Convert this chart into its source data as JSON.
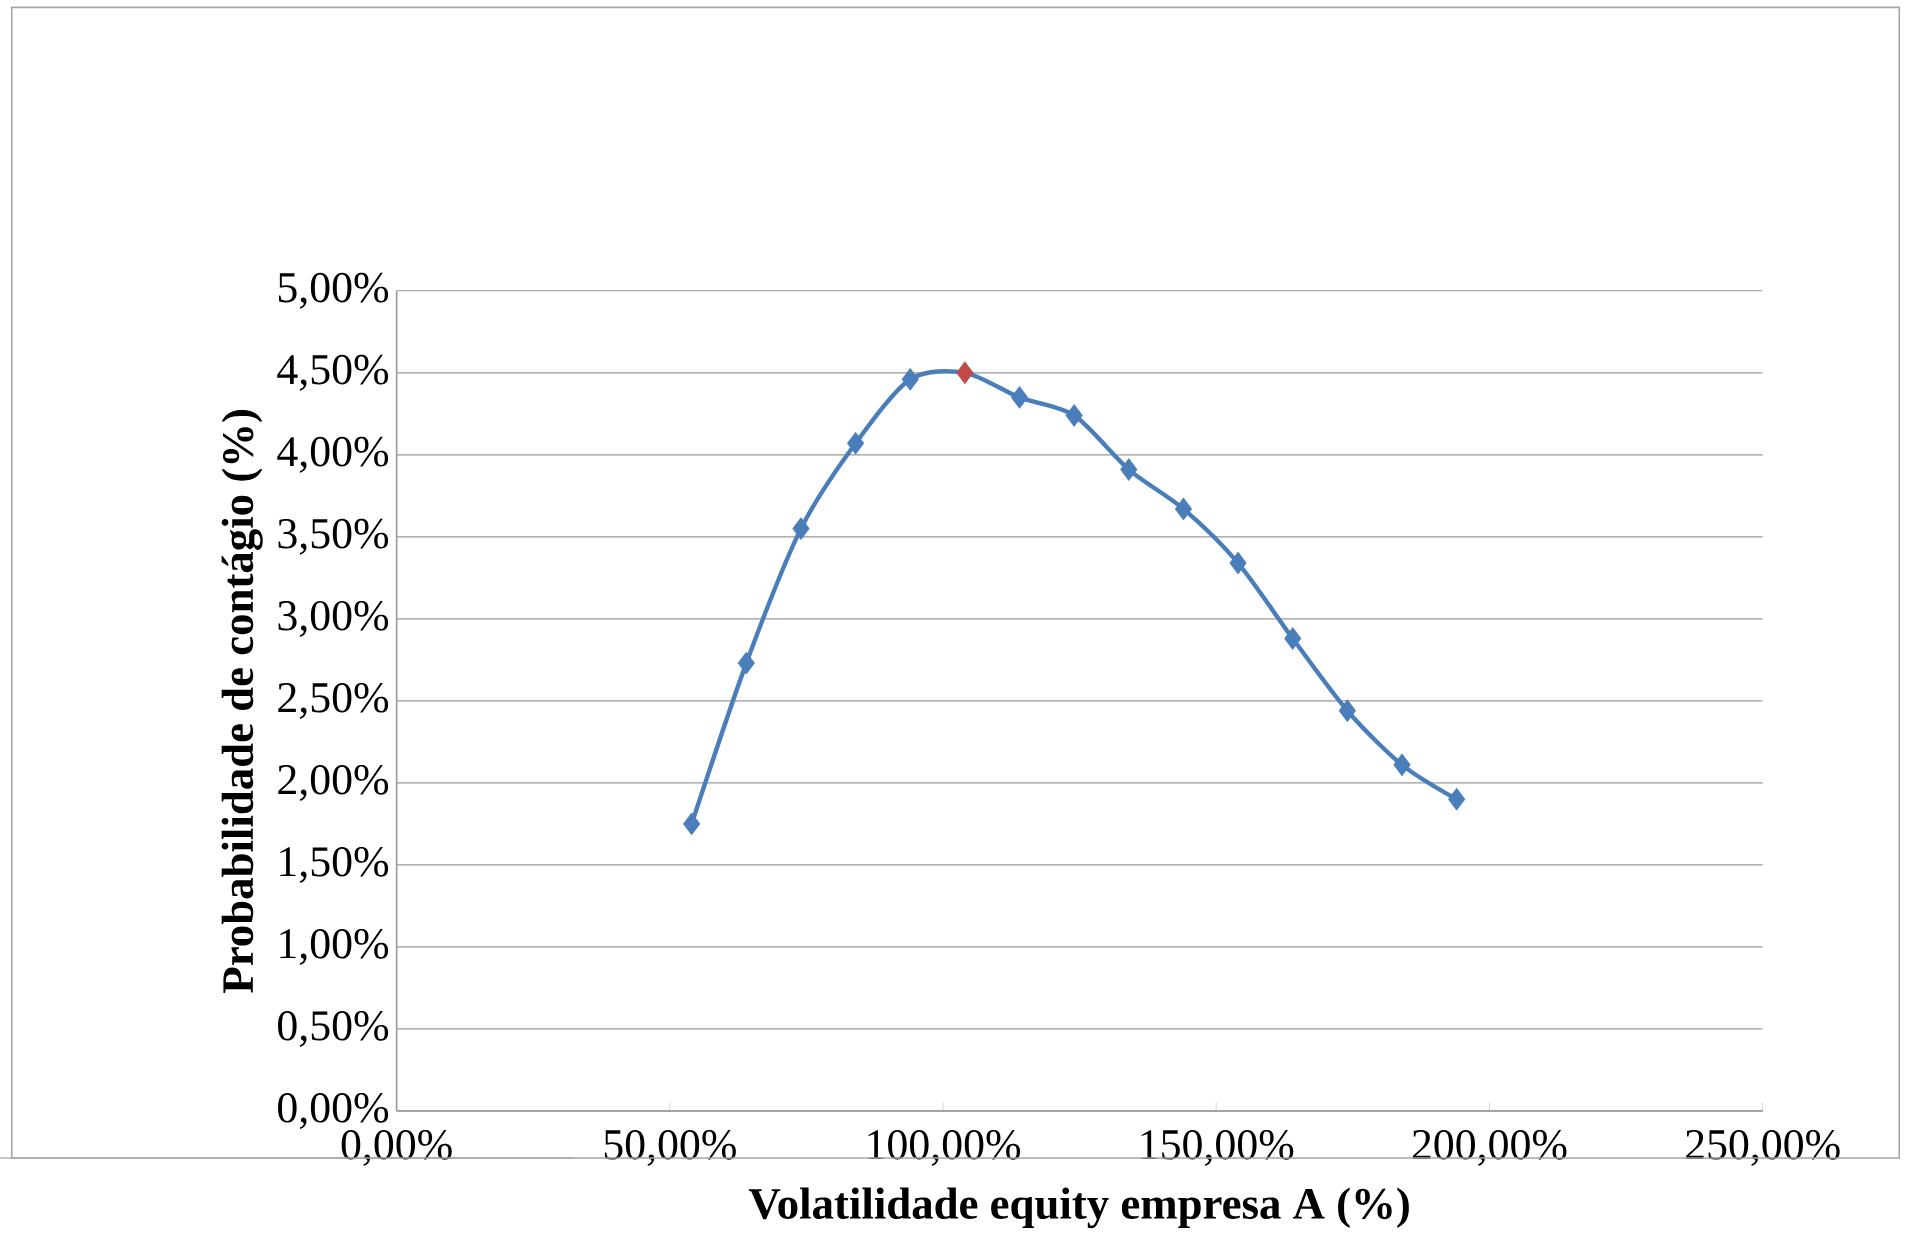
{
  "chart_data": {
    "type": "line",
    "xlabel": "Volatilidade equity empresa A (%)",
    "ylabel": "Probabilidade de contágio (%)",
    "series": [
      {
        "color": "#4a7ebb",
        "colors": [
          "#4a7ebb",
          "#4a7ebb",
          "#4a7ebb",
          "#4a7ebb",
          "#4a7ebb",
          "#be4b48",
          "#4a7ebb",
          "#4a7ebb",
          "#4a7ebb",
          "#4a7ebb",
          "#4a7ebb",
          "#4a7ebb",
          "#4a7ebb",
          "#4a7ebb",
          "#4a7ebb"
        ],
        "x": [
          54,
          64,
          74,
          84,
          94,
          104,
          114,
          124,
          134,
          144,
          154,
          164,
          174,
          184,
          194
        ],
        "values": [
          1.75,
          2.73,
          3.55,
          4.07,
          4.46,
          4.5,
          4.35,
          4.24,
          3.91,
          3.67,
          3.34,
          2.88,
          2.44,
          2.11,
          1.9
        ]
      }
    ],
    "xlim": [
      0,
      250
    ],
    "xticks": [
      {
        "value": 0,
        "label": "0,00%"
      },
      {
        "value": 50,
        "label": "50,00%"
      },
      {
        "value": 100,
        "label": "100,00%"
      },
      {
        "value": 150,
        "label": "150,00%"
      },
      {
        "value": 200,
        "label": "200,00%"
      },
      {
        "value": 250,
        "label": "250,00%"
      }
    ],
    "ylim": [
      0,
      5
    ],
    "yticks": [
      {
        "value": 0,
        "label": "0,00%"
      },
      {
        "value": 0.5,
        "label": "0,50%"
      },
      {
        "value": 1,
        "label": "1,00%"
      },
      {
        "value": 1.5,
        "label": "1,50%"
      },
      {
        "value": 2,
        "label": "2,00%"
      },
      {
        "value": 2.5,
        "label": "2,50%"
      },
      {
        "value": 3,
        "label": "3,00%"
      },
      {
        "value": 3.5,
        "label": "3,50%"
      },
      {
        "value": 4,
        "label": "4,00%"
      },
      {
        "value": 4.5,
        "label": "4,50%"
      },
      {
        "value": 5,
        "label": "5,00%"
      }
    ],
    "grid": "y",
    "marker": "diamond",
    "line_style": "solid"
  }
}
